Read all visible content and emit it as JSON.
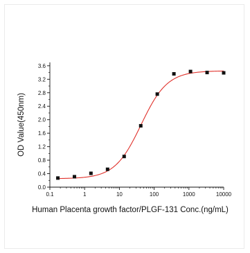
{
  "chart_data": {
    "type": "scatter",
    "title": "",
    "xlabel": "Human Placenta growth factor/PLGF-131 Conc.(ng/mL)",
    "ylabel": "OD Value(450nm)",
    "x_scale": "log",
    "xlim": [
      0.1,
      10000
    ],
    "ylim": [
      0.0,
      3.7
    ],
    "x_ticks": [
      0.1,
      1,
      10,
      100,
      1000,
      10000
    ],
    "x_tick_labels": [
      "0.1",
      "1",
      "10",
      "100",
      "1000",
      "10000"
    ],
    "y_ticks": [
      0.0,
      0.4,
      0.8,
      1.2,
      1.6,
      2.0,
      2.4,
      2.8,
      3.2,
      3.6
    ],
    "y_tick_labels": [
      "0.0",
      "0.4",
      "0.8",
      "1.2",
      "1.6",
      "2.0",
      "2.4",
      "2.8",
      "3.2",
      "3.6"
    ],
    "grid": false,
    "legend": "none",
    "series": [
      {
        "kind": "points",
        "color": "#111111",
        "x": [
          0.17,
          0.51,
          1.52,
          4.57,
          13.7,
          41.2,
          123,
          370,
          1111,
          3333,
          10000
        ],
        "y": [
          0.27,
          0.31,
          0.41,
          0.53,
          0.91,
          1.82,
          2.76,
          3.36,
          3.43,
          3.4,
          3.39
        ]
      },
      {
        "kind": "fit_curve",
        "color": "#e0302a",
        "model": "4PL",
        "bottom": 0.25,
        "top": 3.45,
        "ec50": 42,
        "hill": 1.15
      }
    ]
  }
}
